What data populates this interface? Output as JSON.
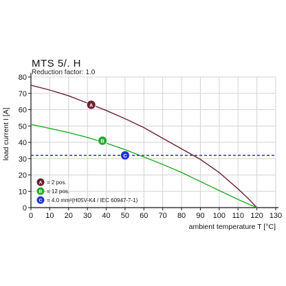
{
  "chart_data": {
    "type": "line",
    "title": "MTS 5/. H",
    "subtitle": "Reduction factor: 1.0",
    "xlabel": "ambient temperature T [°C]",
    "ylabel": "load current I [A]",
    "xlim": [
      0,
      130
    ],
    "ylim": [
      0,
      80
    ],
    "xticks": [
      "0",
      "10",
      "20",
      "30",
      "40",
      "50",
      "60",
      "70",
      "80",
      "90",
      "100",
      "110",
      "120",
      "130"
    ],
    "yticks": [
      "0",
      "10",
      "20",
      "30",
      "40",
      "50",
      "60",
      "70",
      "80"
    ],
    "grid": true,
    "legend_position": "bottom-left",
    "series": [
      {
        "marker": "A",
        "label": "= 2 pos.",
        "color": "#6b2030",
        "x": [
          0,
          10,
          20,
          30,
          40,
          50,
          60,
          70,
          80,
          90,
          100,
          110,
          115,
          118,
          120
        ],
        "y": [
          75,
          72,
          68.5,
          64,
          59.5,
          54.5,
          49,
          42.5,
          36,
          29.5,
          21.5,
          11.5,
          6,
          2.5,
          0
        ]
      },
      {
        "marker": "B",
        "label": "= 12 pos.",
        "color": "#22aa2a",
        "x": [
          0,
          10,
          20,
          30,
          40,
          50,
          60,
          70,
          80,
          90,
          100,
          110,
          115,
          118,
          120
        ],
        "y": [
          51,
          48.5,
          46,
          43,
          39.5,
          35.5,
          31,
          26.5,
          21.5,
          16,
          10.5,
          5,
          2.5,
          1,
          0
        ]
      },
      {
        "marker": "C",
        "label": "= 4.0 mm²(H05V-K4 / IEC 60947-7-1)",
        "color": "#2233cc",
        "style": "dashed",
        "x": [
          0,
          130
        ],
        "y": [
          32,
          32
        ]
      }
    ],
    "marker_positions": [
      {
        "marker": "A",
        "x": 32,
        "y": 63
      },
      {
        "marker": "B",
        "x": 38,
        "y": 41
      },
      {
        "marker": "C",
        "x": 50,
        "y": 32
      }
    ]
  }
}
